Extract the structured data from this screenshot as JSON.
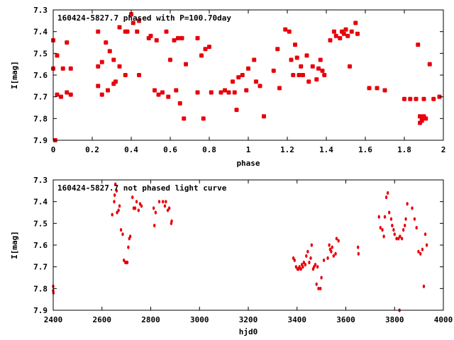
{
  "marker_color": "#e8000b",
  "chart_data": [
    {
      "type": "scatter",
      "title": "160424-5827.7 phased with P=100.70day",
      "xlabel": "phase",
      "ylabel": "I[mag]",
      "xlim": [
        0,
        2
      ],
      "ylim": [
        7.3,
        7.9
      ],
      "y_inverted": true,
      "grid": false,
      "xticks": [
        "0",
        "0.2",
        "0.4",
        "0.6",
        "0.8",
        "1",
        "1.2",
        "1.4",
        "1.6",
        "1.8",
        "2"
      ],
      "yticks": [
        "7.3",
        "7.4",
        "7.5",
        "7.6",
        "7.7",
        "7.8",
        "7.9"
      ],
      "points": [
        [
          0.0,
          7.44
        ],
        [
          0.0,
          7.57
        ],
        [
          0.01,
          7.9
        ],
        [
          0.02,
          7.69
        ],
        [
          0.02,
          7.51
        ],
        [
          0.04,
          7.7
        ],
        [
          0.05,
          7.57
        ],
        [
          0.07,
          7.45
        ],
        [
          0.07,
          7.68
        ],
        [
          0.09,
          7.69
        ],
        [
          0.09,
          7.57
        ],
        [
          0.23,
          7.4
        ],
        [
          0.23,
          7.56
        ],
        [
          0.23,
          7.65
        ],
        [
          0.25,
          7.54
        ],
        [
          0.25,
          7.69
        ],
        [
          0.27,
          7.45
        ],
        [
          0.28,
          7.67
        ],
        [
          0.29,
          7.49
        ],
        [
          0.31,
          7.64
        ],
        [
          0.31,
          7.53
        ],
        [
          0.32,
          7.63
        ],
        [
          0.34,
          7.56
        ],
        [
          0.34,
          7.38
        ],
        [
          0.37,
          7.6
        ],
        [
          0.37,
          7.4
        ],
        [
          0.38,
          7.4
        ],
        [
          0.4,
          7.32
        ],
        [
          0.41,
          7.36
        ],
        [
          0.43,
          7.4
        ],
        [
          0.44,
          7.35
        ],
        [
          0.44,
          7.6
        ],
        [
          0.49,
          7.43
        ],
        [
          0.5,
          7.42
        ],
        [
          0.52,
          7.67
        ],
        [
          0.53,
          7.44
        ],
        [
          0.54,
          7.69
        ],
        [
          0.56,
          7.68
        ],
        [
          0.58,
          7.4
        ],
        [
          0.59,
          7.7
        ],
        [
          0.6,
          7.53
        ],
        [
          0.62,
          7.44
        ],
        [
          0.63,
          7.67
        ],
        [
          0.64,
          7.43
        ],
        [
          0.65,
          7.73
        ],
        [
          0.66,
          7.43
        ],
        [
          0.67,
          7.8
        ],
        [
          0.68,
          7.55
        ],
        [
          0.74,
          7.43
        ],
        [
          0.74,
          7.68
        ],
        [
          0.76,
          7.51
        ],
        [
          0.77,
          7.8
        ],
        [
          0.78,
          7.48
        ],
        [
          0.8,
          7.47
        ],
        [
          0.81,
          7.68
        ],
        [
          0.86,
          7.68
        ],
        [
          0.88,
          7.67
        ],
        [
          0.9,
          7.68
        ],
        [
          0.92,
          7.63
        ],
        [
          0.93,
          7.68
        ],
        [
          0.94,
          7.76
        ],
        [
          0.95,
          7.61
        ],
        [
          0.97,
          7.6
        ],
        [
          0.99,
          7.67
        ],
        [
          1.0,
          7.57
        ],
        [
          1.03,
          7.53
        ],
        [
          1.04,
          7.63
        ],
        [
          1.06,
          7.65
        ],
        [
          1.08,
          7.79
        ],
        [
          1.13,
          7.58
        ],
        [
          1.15,
          7.48
        ],
        [
          1.16,
          7.66
        ],
        [
          1.19,
          7.39
        ],
        [
          1.21,
          7.4
        ],
        [
          1.22,
          7.53
        ],
        [
          1.23,
          7.6
        ],
        [
          1.24,
          7.46
        ],
        [
          1.25,
          7.52
        ],
        [
          1.26,
          7.6
        ],
        [
          1.27,
          7.56
        ],
        [
          1.28,
          7.6
        ],
        [
          1.3,
          7.51
        ],
        [
          1.31,
          7.63
        ],
        [
          1.33,
          7.56
        ],
        [
          1.35,
          7.62
        ],
        [
          1.36,
          7.57
        ],
        [
          1.37,
          7.53
        ],
        [
          1.38,
          7.58
        ],
        [
          1.39,
          7.6
        ],
        [
          1.42,
          7.44
        ],
        [
          1.44,
          7.4
        ],
        [
          1.45,
          7.42
        ],
        [
          1.47,
          7.43
        ],
        [
          1.48,
          7.4
        ],
        [
          1.49,
          7.41
        ],
        [
          1.5,
          7.39
        ],
        [
          1.51,
          7.42
        ],
        [
          1.52,
          7.56
        ],
        [
          1.53,
          7.4
        ],
        [
          1.55,
          7.36
        ],
        [
          1.56,
          7.41
        ],
        [
          1.62,
          7.66
        ],
        [
          1.66,
          7.66
        ],
        [
          1.7,
          7.67
        ],
        [
          1.8,
          7.71
        ],
        [
          1.83,
          7.71
        ],
        [
          1.86,
          7.71
        ],
        [
          1.87,
          7.46
        ],
        [
          1.88,
          7.82
        ],
        [
          1.88,
          7.79
        ],
        [
          1.89,
          7.8
        ],
        [
          1.89,
          7.81
        ],
        [
          1.9,
          7.79
        ],
        [
          1.9,
          7.71
        ],
        [
          1.91,
          7.8
        ],
        [
          1.93,
          7.55
        ],
        [
          1.95,
          7.71
        ],
        [
          1.98,
          7.7
        ]
      ]
    },
    {
      "type": "scatter",
      "title": "160424-5827.7 not phased light curve",
      "xlabel": "hjd0",
      "ylabel": "I[mag]",
      "xlim": [
        2400,
        4000
      ],
      "ylim": [
        7.3,
        7.9
      ],
      "y_inverted": true,
      "grid": false,
      "xticks": [
        "2400",
        "2600",
        "2800",
        "3000",
        "3200",
        "3400",
        "3600",
        "3800",
        "4000"
      ],
      "yticks": [
        "7.3",
        "7.4",
        "7.5",
        "7.6",
        "7.7",
        "7.8",
        "7.9"
      ],
      "points": [
        [
          2400,
          7.79
        ],
        [
          2400,
          7.81
        ],
        [
          2401,
          7.82
        ],
        [
          2642,
          7.46
        ],
        [
          2650,
          7.4
        ],
        [
          2652,
          7.37
        ],
        [
          2655,
          7.32
        ],
        [
          2660,
          7.35
        ],
        [
          2662,
          7.45
        ],
        [
          2668,
          7.44
        ],
        [
          2672,
          7.42
        ],
        [
          2678,
          7.53
        ],
        [
          2685,
          7.55
        ],
        [
          2690,
          7.67
        ],
        [
          2696,
          7.68
        ],
        [
          2700,
          7.68
        ],
        [
          2704,
          7.68
        ],
        [
          2708,
          7.61
        ],
        [
          2712,
          7.57
        ],
        [
          2716,
          7.56
        ],
        [
          2725,
          7.38
        ],
        [
          2730,
          7.43
        ],
        [
          2736,
          7.43
        ],
        [
          2742,
          7.4
        ],
        [
          2750,
          7.44
        ],
        [
          2756,
          7.41
        ],
        [
          2762,
          7.42
        ],
        [
          2812,
          7.43
        ],
        [
          2815,
          7.51
        ],
        [
          2820,
          7.45
        ],
        [
          2835,
          7.4
        ],
        [
          2850,
          7.4
        ],
        [
          2858,
          7.42
        ],
        [
          2862,
          7.4
        ],
        [
          2870,
          7.44
        ],
        [
          2876,
          7.43
        ],
        [
          2884,
          7.5
        ],
        [
          2886,
          7.49
        ],
        [
          3385,
          7.66
        ],
        [
          3390,
          7.67
        ],
        [
          3396,
          7.7
        ],
        [
          3402,
          7.71
        ],
        [
          3406,
          7.71
        ],
        [
          3410,
          7.7
        ],
        [
          3416,
          7.71
        ],
        [
          3420,
          7.69
        ],
        [
          3424,
          7.7
        ],
        [
          3428,
          7.68
        ],
        [
          3434,
          7.69
        ],
        [
          3438,
          7.65
        ],
        [
          3444,
          7.63
        ],
        [
          3450,
          7.68
        ],
        [
          3456,
          7.66
        ],
        [
          3460,
          7.6
        ],
        [
          3466,
          7.71
        ],
        [
          3470,
          7.7
        ],
        [
          3475,
          7.69
        ],
        [
          3480,
          7.78
        ],
        [
          3484,
          7.7
        ],
        [
          3488,
          7.8
        ],
        [
          3496,
          7.8
        ],
        [
          3500,
          7.75
        ],
        [
          3510,
          7.67
        ],
        [
          3526,
          7.66
        ],
        [
          3532,
          7.6
        ],
        [
          3536,
          7.62
        ],
        [
          3540,
          7.63
        ],
        [
          3544,
          7.61
        ],
        [
          3550,
          7.65
        ],
        [
          3558,
          7.64
        ],
        [
          3562,
          7.57
        ],
        [
          3570,
          7.58
        ],
        [
          3650,
          7.61
        ],
        [
          3652,
          7.64
        ],
        [
          3736,
          7.47
        ],
        [
          3742,
          7.52
        ],
        [
          3750,
          7.53
        ],
        [
          3756,
          7.56
        ],
        [
          3760,
          7.47
        ],
        [
          3766,
          7.38
        ],
        [
          3772,
          7.36
        ],
        [
          3778,
          7.45
        ],
        [
          3786,
          7.48
        ],
        [
          3790,
          7.51
        ],
        [
          3796,
          7.53
        ],
        [
          3800,
          7.55
        ],
        [
          3808,
          7.57
        ],
        [
          3816,
          7.57
        ],
        [
          3822,
          7.56
        ],
        [
          3830,
          7.57
        ],
        [
          3836,
          7.53
        ],
        [
          3842,
          7.51
        ],
        [
          3846,
          7.48
        ],
        [
          3852,
          7.41
        ],
        [
          3872,
          7.43
        ],
        [
          3882,
          7.48
        ],
        [
          3890,
          7.52
        ],
        [
          3898,
          7.63
        ],
        [
          3906,
          7.64
        ],
        [
          3914,
          7.62
        ],
        [
          3920,
          7.79
        ],
        [
          3926,
          7.55
        ],
        [
          3932,
          7.6
        ],
        [
          3820,
          7.9
        ]
      ]
    }
  ]
}
